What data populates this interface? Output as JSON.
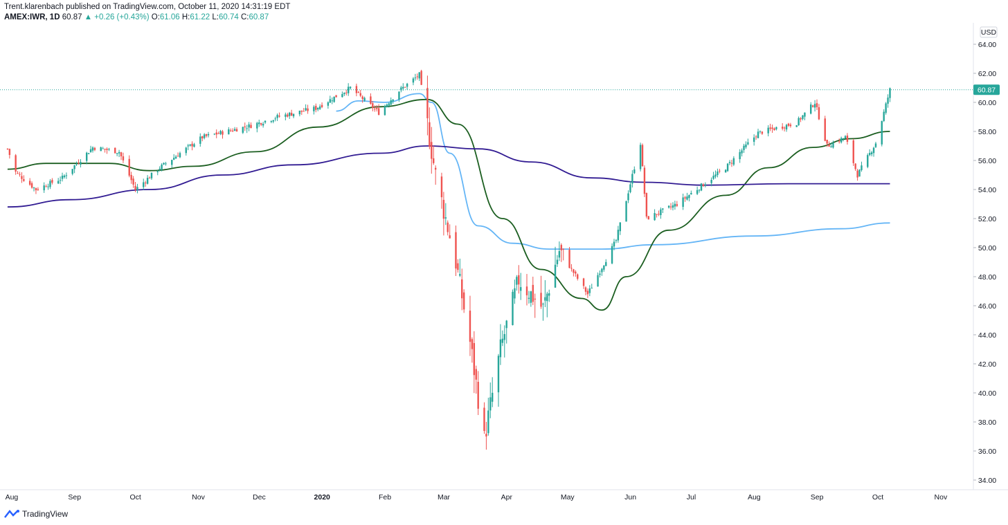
{
  "header": {
    "published": "Trent.klarenbach published on TradingView.com, October 11, 2020 14:31:19 EDT",
    "symbol": "AMEX:IWR, 1D",
    "last": "60.87",
    "change": "▲ +0.26 (+0.43%)",
    "o_label": "O:",
    "o_value": "61.06",
    "h_label": "H:",
    "h_value": "61.22",
    "l_label": "L:",
    "l_value": "60.74",
    "c_label": "C:",
    "c_value": "60.87"
  },
  "footer": {
    "brand": "TradingView"
  },
  "colors": {
    "up": "#26a69a",
    "down": "#ef5350",
    "ma_short": "#1b5e20",
    "ma_long": "#311b92",
    "ma_light": "#64b5f6",
    "price_tag": "#26a69a"
  },
  "chart_data": {
    "type": "candlestick",
    "currency": "USD",
    "ylim": [
      33,
      66
    ],
    "y_ticks": [
      "64.00",
      "62.00",
      "60.00",
      "58.00",
      "56.00",
      "54.00",
      "52.00",
      "50.00",
      "48.00",
      "46.00",
      "44.00",
      "42.00",
      "40.00",
      "38.00",
      "36.00",
      "34.00"
    ],
    "x_ticks": [
      "Aug",
      "Sep",
      "Oct",
      "Nov",
      "Dec",
      "2020",
      "Feb",
      "Mar",
      "Apr",
      "May",
      "Jun",
      "Jul",
      "Aug",
      "Sep",
      "Oct",
      "Nov"
    ],
    "last_price": "60.87",
    "price_anchors": [
      [
        "2019-08-01",
        56.8
      ],
      [
        "2019-08-05",
        55.2
      ],
      [
        "2019-08-15",
        54.0
      ],
      [
        "2019-08-28",
        54.8
      ],
      [
        "2019-09-12",
        56.9
      ],
      [
        "2019-09-25",
        56.6
      ],
      [
        "2019-10-03",
        54.0
      ],
      [
        "2019-10-15",
        55.5
      ],
      [
        "2019-11-05",
        57.6
      ],
      [
        "2019-11-29",
        58.4
      ],
      [
        "2019-12-12",
        59.0
      ],
      [
        "2019-12-31",
        59.6
      ],
      [
        "2020-01-17",
        61.0
      ],
      [
        "2020-01-31",
        59.3
      ],
      [
        "2020-02-10",
        60.8
      ],
      [
        "2020-02-20",
        61.9
      ],
      [
        "2020-02-28",
        55.0
      ],
      [
        "2020-03-09",
        49.0
      ],
      [
        "2020-03-16",
        43.5
      ],
      [
        "2020-03-23",
        36.8
      ],
      [
        "2020-03-31",
        43.0
      ],
      [
        "2020-04-09",
        47.8
      ],
      [
        "2020-04-21",
        45.8
      ],
      [
        "2020-04-29",
        49.8
      ],
      [
        "2020-05-13",
        46.8
      ],
      [
        "2020-05-27",
        50.5
      ],
      [
        "2020-06-08",
        57.2
      ],
      [
        "2020-06-11",
        52.0
      ],
      [
        "2020-06-26",
        53.0
      ],
      [
        "2020-07-20",
        55.5
      ],
      [
        "2020-08-05",
        57.9
      ],
      [
        "2020-08-24",
        58.6
      ],
      [
        "2020-09-02",
        60.0
      ],
      [
        "2020-09-08",
        57.0
      ],
      [
        "2020-09-17",
        57.6
      ],
      [
        "2020-09-23",
        55.0
      ],
      [
        "2020-10-02",
        57.2
      ],
      [
        "2020-10-09",
        60.87
      ]
    ],
    "moving_averages": [
      {
        "name": "",
        "color": "#64b5f6",
        "points": [
          [
            "2020-01-10",
            59.4
          ],
          [
            "2020-01-21",
            60.1
          ],
          [
            "2020-02-03",
            60.0
          ],
          [
            "2020-02-20",
            60.6
          ],
          [
            "2020-02-26",
            60.0
          ],
          [
            "2020-03-06",
            56.5
          ],
          [
            "2020-03-20",
            51.5
          ],
          [
            "2020-04-06",
            50.3
          ],
          [
            "2020-04-24",
            49.9
          ],
          [
            "2020-05-20",
            49.9
          ],
          [
            "2020-06-15",
            50.2
          ],
          [
            "2020-08-03",
            50.8
          ],
          [
            "2020-09-15",
            51.3
          ],
          [
            "2020-10-09",
            51.7
          ]
        ]
      },
      {
        "name": "",
        "color": "#1b5e20",
        "points": [
          [
            "2019-08-01",
            55.4
          ],
          [
            "2019-08-20",
            55.8
          ],
          [
            "2019-09-20",
            55.8
          ],
          [
            "2019-10-10",
            55.3
          ],
          [
            "2019-11-01",
            55.6
          ],
          [
            "2019-12-01",
            56.6
          ],
          [
            "2020-01-01",
            58.3
          ],
          [
            "2020-02-01",
            59.7
          ],
          [
            "2020-02-24",
            60.2
          ],
          [
            "2020-03-10",
            58.5
          ],
          [
            "2020-04-01",
            52.0
          ],
          [
            "2020-04-20",
            48.5
          ],
          [
            "2020-05-10",
            46.5
          ],
          [
            "2020-05-20",
            45.7
          ],
          [
            "2020-06-01",
            48.0
          ],
          [
            "2020-06-22",
            51.2
          ],
          [
            "2020-07-20",
            53.6
          ],
          [
            "2020-08-10",
            55.5
          ],
          [
            "2020-09-01",
            56.9
          ],
          [
            "2020-09-20",
            57.5
          ],
          [
            "2020-10-09",
            58.0
          ]
        ]
      },
      {
        "name": "",
        "color": "#311b92",
        "points": [
          [
            "2019-08-01",
            52.8
          ],
          [
            "2019-09-01",
            53.3
          ],
          [
            "2019-10-10",
            54.0
          ],
          [
            "2019-11-15",
            55.0
          ],
          [
            "2019-12-20",
            55.7
          ],
          [
            "2020-02-01",
            56.5
          ],
          [
            "2020-02-24",
            57.0
          ],
          [
            "2020-03-20",
            56.8
          ],
          [
            "2020-04-15",
            55.9
          ],
          [
            "2020-05-15",
            54.8
          ],
          [
            "2020-06-10",
            54.5
          ],
          [
            "2020-07-10",
            54.3
          ],
          [
            "2020-08-20",
            54.4
          ],
          [
            "2020-10-09",
            54.4
          ]
        ]
      }
    ]
  }
}
